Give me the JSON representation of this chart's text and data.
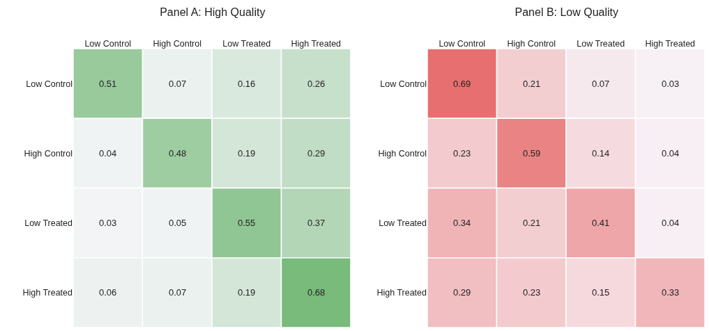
{
  "chart_data": [
    {
      "type": "heatmap",
      "title": "Panel A: High Quality",
      "color": "#78bb7b",
      "data_labels": true,
      "categories": [
        "Low Control",
        "High Control",
        "Low Treated",
        "High Treated"
      ],
      "y_categories": [
        "Low Control",
        "High Control",
        "Low Treated",
        "High Treated"
      ],
      "cells": [
        [
          0.51,
          0.07,
          0.16,
          0.26
        ],
        [
          0.04,
          0.48,
          0.19,
          0.29
        ],
        [
          0.03,
          0.05,
          0.55,
          0.37
        ],
        [
          0.06,
          0.07,
          0.19,
          0.68
        ]
      ]
    },
    {
      "type": "heatmap",
      "title": "Panel B: Low Quality",
      "color": "#e86f6f",
      "data_labels": true,
      "categories": [
        "Low Control",
        "High Control",
        "Low Treated",
        "High Treated"
      ],
      "y_categories": [
        "Low Control",
        "High Control",
        "Low Treated",
        "High Treated"
      ],
      "cells": [
        [
          0.69,
          0.21,
          0.07,
          0.03
        ],
        [
          0.23,
          0.59,
          0.14,
          0.04
        ],
        [
          0.34,
          0.21,
          0.41,
          0.04
        ],
        [
          0.29,
          0.23,
          0.15,
          0.33
        ]
      ]
    }
  ]
}
